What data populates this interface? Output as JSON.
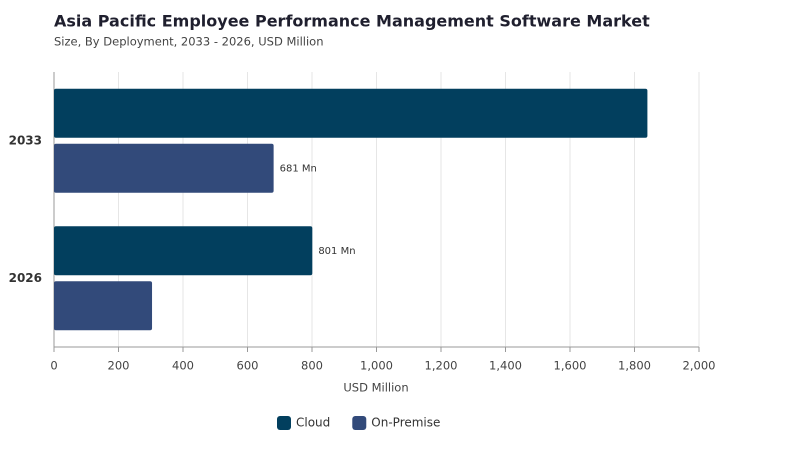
{
  "chart_data": {
    "type": "bar",
    "orientation": "horizontal",
    "title": "Asia Pacific Employee Performance Management Software Market",
    "subtitle": "Size, By Deployment, 2033 - 2026, USD Million",
    "xlabel": "USD Million",
    "categories": [
      "2033",
      "2026"
    ],
    "series": [
      {
        "name": "Cloud",
        "color": "#023f5e",
        "values": [
          1840,
          801
        ],
        "value_labels": [
          null,
          "801 Mn"
        ]
      },
      {
        "name": "On-Premise",
        "color": "#324a7a",
        "values": [
          681,
          304
        ],
        "value_labels": [
          "681 Mn",
          null
        ]
      }
    ],
    "xlim": [
      0,
      2000
    ],
    "xticks": [
      0,
      200,
      400,
      600,
      800,
      {
        "value": 1000,
        "label": "1,000"
      },
      {
        "value": 1200,
        "label": "1,200"
      },
      {
        "value": 1400,
        "label": "1,400"
      },
      {
        "value": 1600,
        "label": "1,600"
      },
      {
        "value": 1800,
        "label": "1,800"
      },
      {
        "value": 2000,
        "label": "2,000"
      }
    ],
    "grid": true,
    "legend": "bottom"
  }
}
